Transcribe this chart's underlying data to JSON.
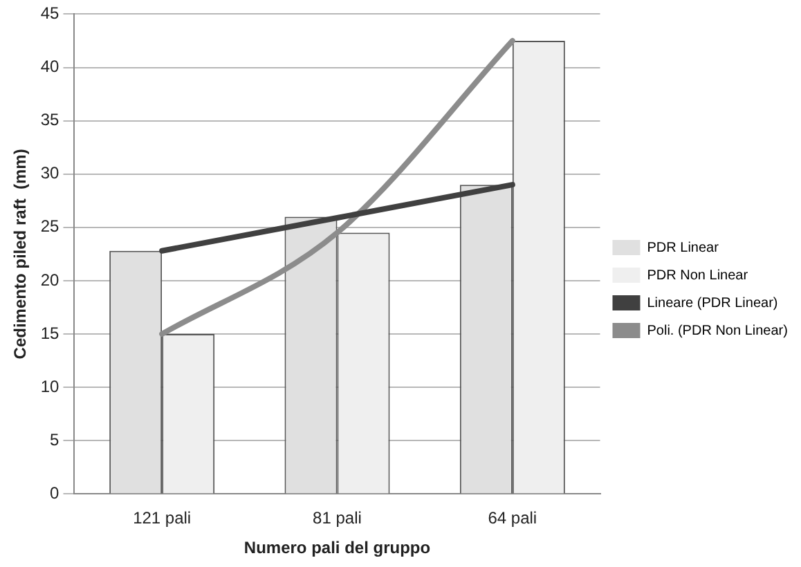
{
  "chart_data": {
    "type": "bar",
    "xlabel": "Numero pali del gruppo",
    "ylabel": "Cedimento piled raft  (mm)",
    "categories": [
      "121 pali",
      "81 pali",
      "64 pali"
    ],
    "series": [
      {
        "name": "PDR Linear",
        "color": "#e0e0e0",
        "values": [
          22.8,
          26,
          29
        ]
      },
      {
        "name": "PDR Non Linear",
        "color": "#efefef",
        "values": [
          15,
          24.5,
          42.5
        ]
      },
      {
        "name": "Lineare (PDR Linear)",
        "type": "line",
        "color": "#404040",
        "values": [
          22.8,
          25.9,
          29
        ]
      },
      {
        "name": "Poli. (PDR Non Linear)",
        "type": "line",
        "color": "#8c8c8c",
        "values": [
          15,
          24.5,
          42.5
        ]
      }
    ],
    "ylim": [
      0,
      45
    ],
    "yticks": [
      0,
      5,
      10,
      15,
      20,
      25,
      30,
      35,
      40,
      45
    ],
    "grid": "y",
    "legend": "right",
    "marker": "none",
    "line_style": "solid"
  }
}
